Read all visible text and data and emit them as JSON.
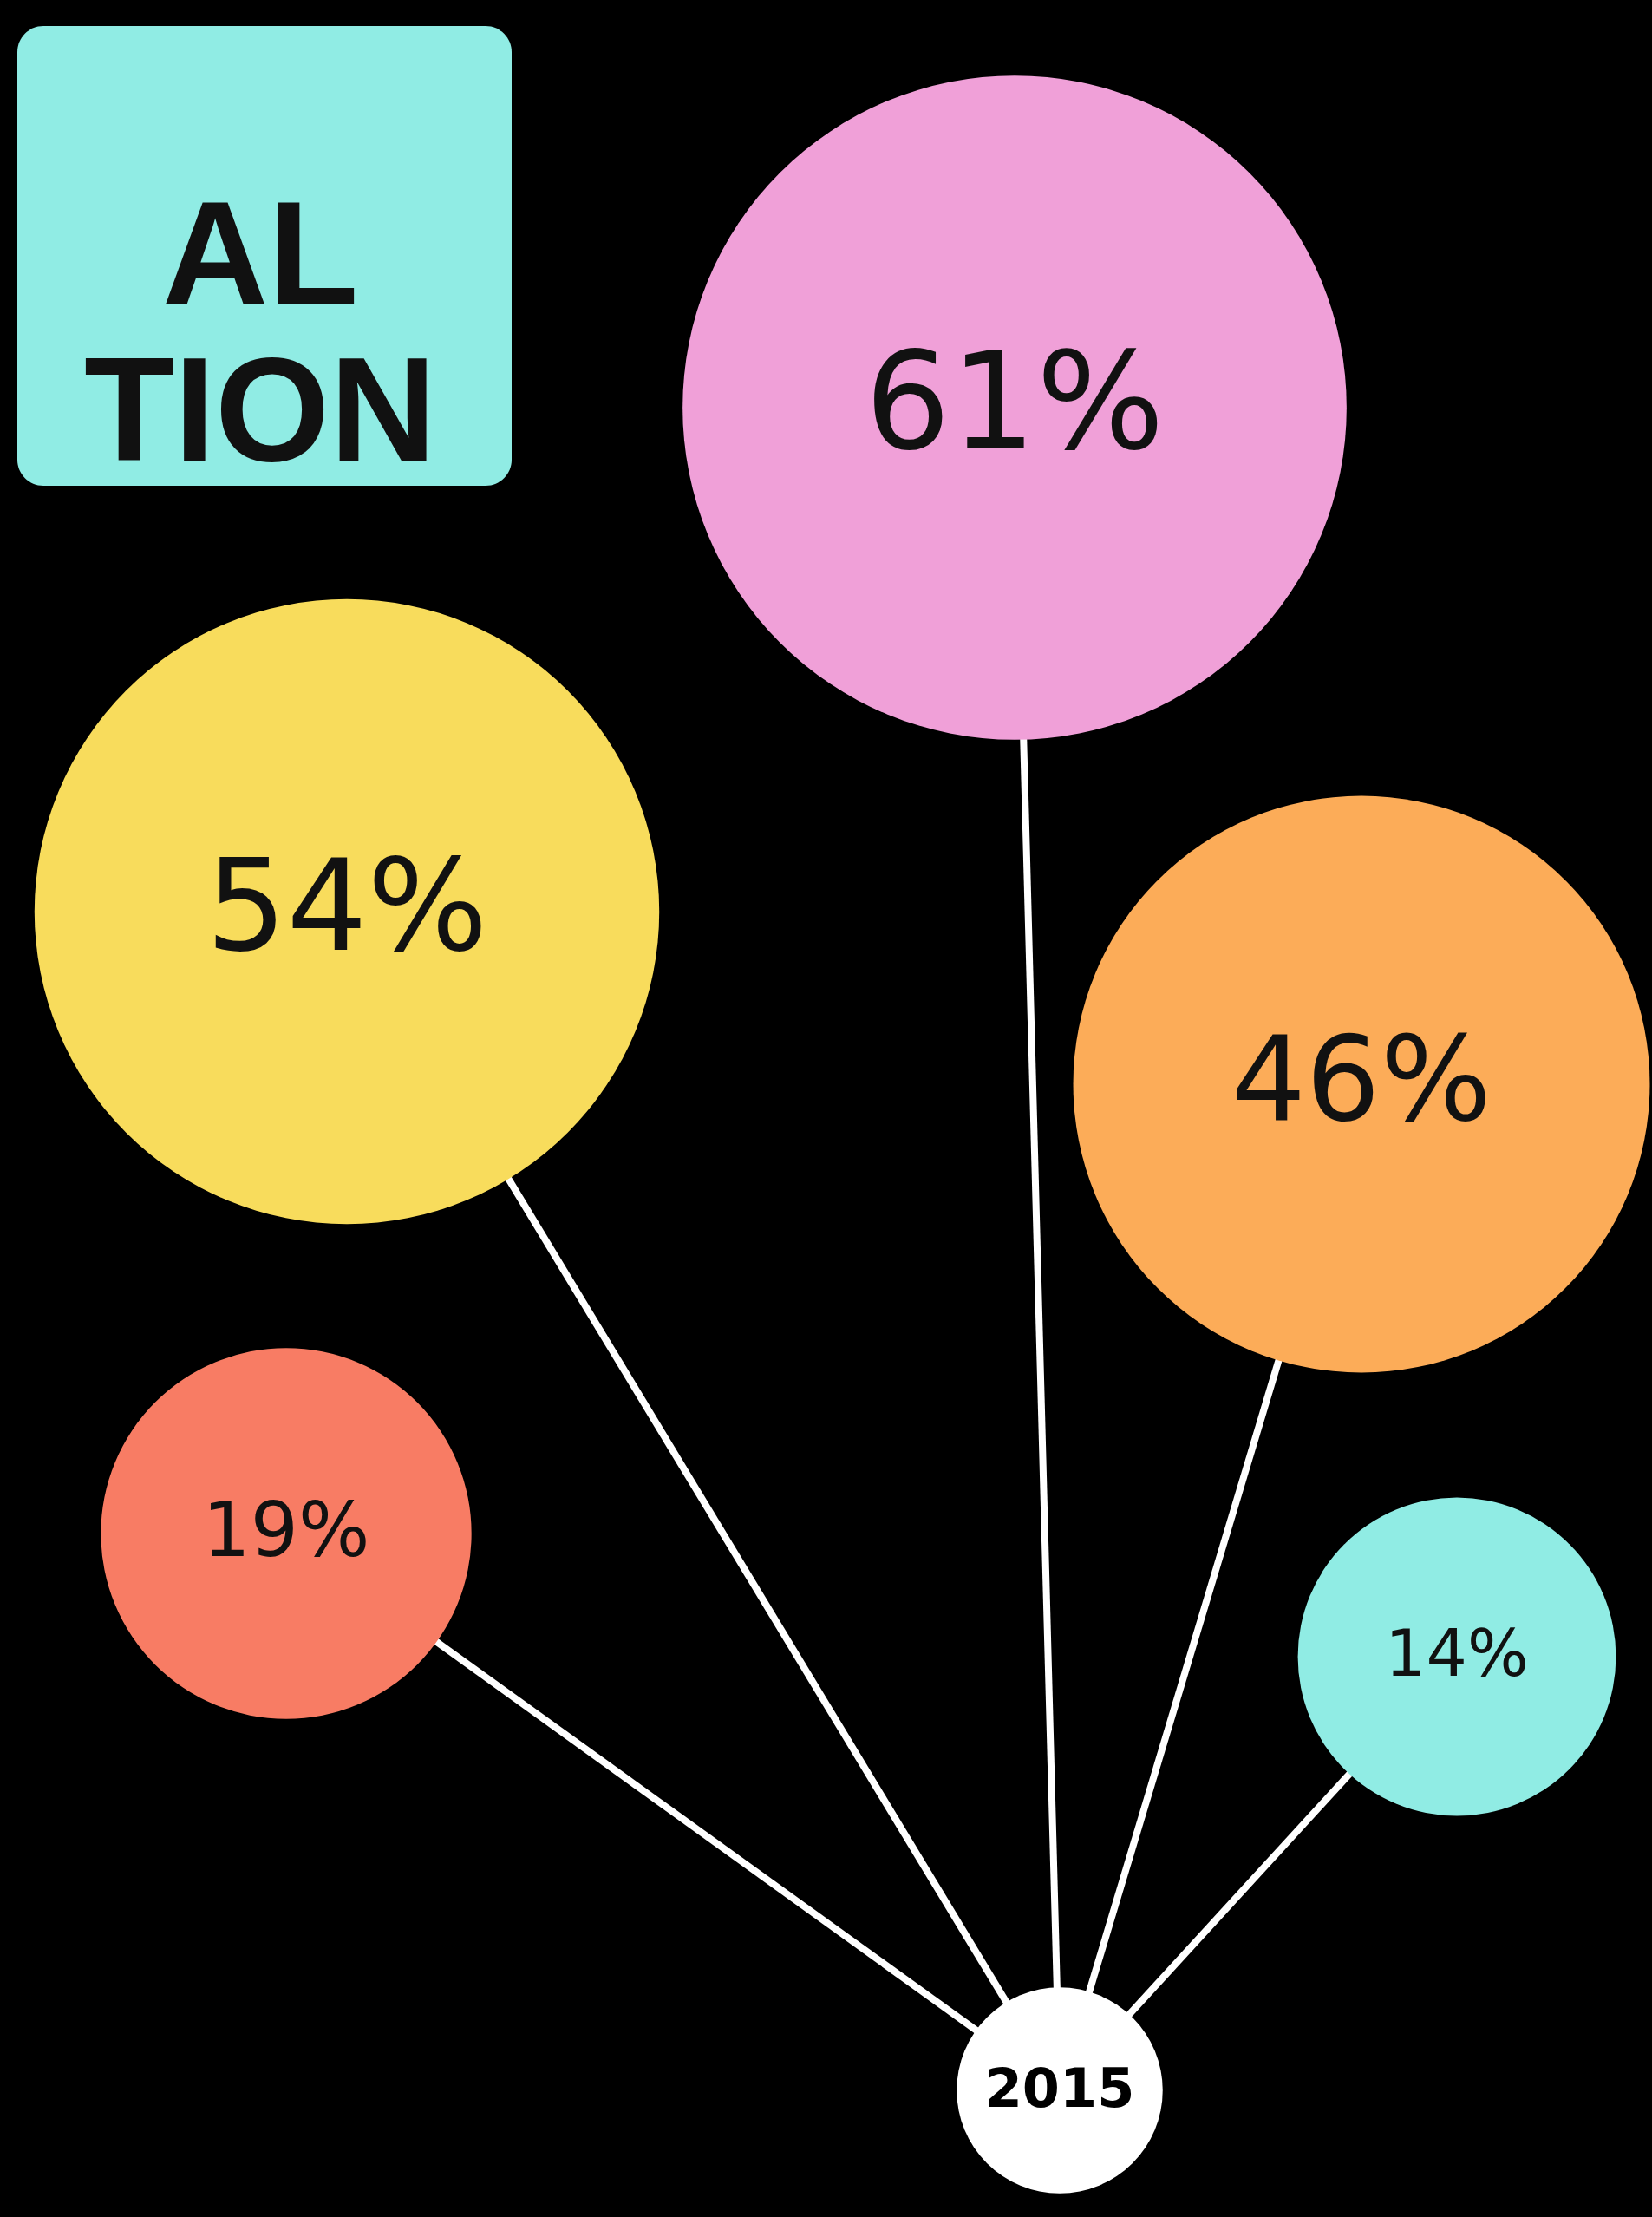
{
  "chart_data": {
    "type": "other",
    "title": "AL\nTION",
    "values": [
      61,
      54,
      46,
      19,
      14
    ],
    "value_labels": [
      "61%",
      "54%",
      "46%",
      "19%",
      "14%"
    ],
    "colors": [
      "#f0a0d8",
      "#f8dc5c",
      "#fcac58",
      "#f87c64",
      "#90ece4"
    ],
    "annotations": [
      "2015"
    ]
  }
}
